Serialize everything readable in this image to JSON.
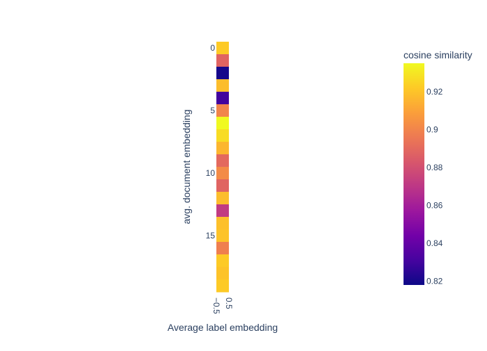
{
  "chart_data": {
    "type": "heatmap",
    "title": "",
    "xlabel": "Average label embedding",
    "ylabel": "avg. document embedding",
    "x_tick_labels": [
      "−0.5",
      "0.5"
    ],
    "y_tick_labels": [
      "0",
      "5",
      "10",
      "15"
    ],
    "y_tick_values": [
      0,
      5,
      10,
      15
    ],
    "rows": [
      0,
      1,
      2,
      3,
      4,
      5,
      6,
      7,
      8,
      9,
      10,
      11,
      12,
      13,
      14,
      15,
      16,
      17,
      18,
      19
    ],
    "values": [
      0.922,
      0.888,
      0.82,
      0.918,
      0.83,
      0.9,
      0.935,
      0.927,
      0.916,
      0.89,
      0.902,
      0.888,
      0.918,
      0.872,
      0.919,
      0.92,
      0.898,
      0.922,
      0.92,
      0.922
    ],
    "colorbar": {
      "title": "cosine similarity",
      "min": 0.818,
      "max": 0.935,
      "tick_values": [
        0.82,
        0.84,
        0.86,
        0.88,
        0.9,
        0.92
      ],
      "tick_labels": [
        "0.82",
        "0.84",
        "0.86",
        "0.88",
        "0.9",
        "0.92"
      ]
    },
    "colorscale": [
      "#0d0887",
      "#46039f",
      "#7201a8",
      "#9c179e",
      "#bd3786",
      "#d8576b",
      "#ed7953",
      "#fb9f3a",
      "#fdca26",
      "#f0f921"
    ],
    "grid": false
  }
}
